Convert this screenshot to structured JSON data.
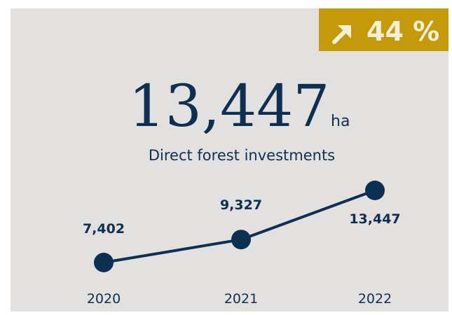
{
  "badge": {
    "text": "44 %"
  },
  "headline": {
    "value": "13,447",
    "unit": "ha",
    "caption": "Direct forest investments"
  },
  "chart_data": {
    "type": "line",
    "categories": [
      "2020",
      "2021",
      "2022"
    ],
    "values": [
      7402,
      9327,
      13447
    ],
    "value_labels": [
      "7,402",
      "9,327",
      "13,447"
    ],
    "color": "#0d2f52"
  }
}
